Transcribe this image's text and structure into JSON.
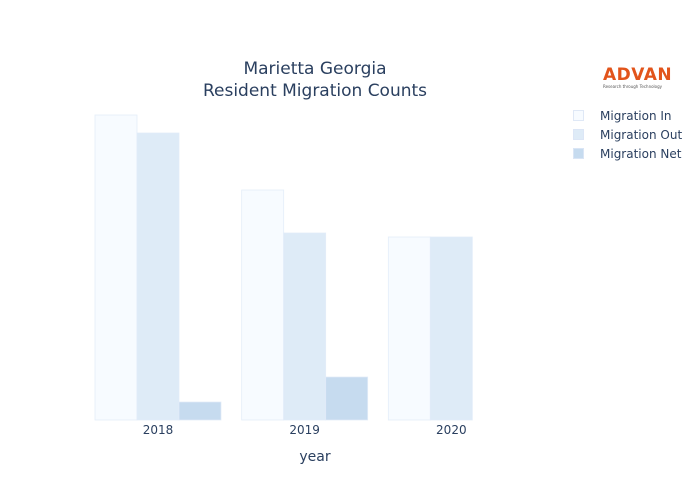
{
  "title_line1": "Marietta Georgia",
  "title_line2": "Resident Migration Counts",
  "logo": {
    "main": "ADVAN",
    "tagline": "Research through Technology"
  },
  "chart_data": {
    "type": "bar",
    "title": "Marietta Georgia Resident Migration Counts",
    "xlabel": "year",
    "ylabel": "",
    "categories": [
      "2018",
      "2019",
      "2020"
    ],
    "series": [
      {
        "name": "Migration In",
        "values": [
          305,
          230,
          183
        ],
        "color": "#f7fbff"
      },
      {
        "name": "Migration Out",
        "values": [
          287,
          187,
          183
        ],
        "color": "#deebf7"
      },
      {
        "name": "Migration Net",
        "values": [
          18,
          43,
          0
        ],
        "color": "#c6dbef"
      }
    ],
    "ylim": [
      0,
      320
    ],
    "grid": false,
    "legend": "top-right"
  }
}
